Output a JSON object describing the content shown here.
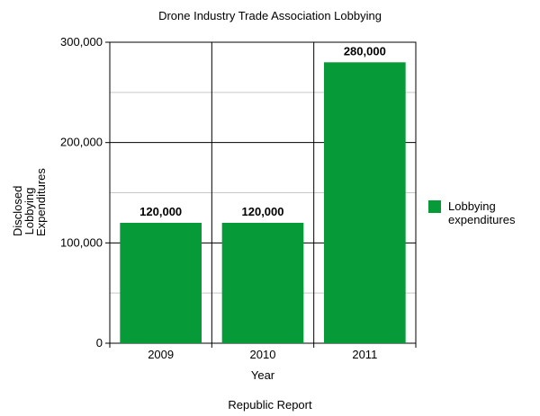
{
  "chart_data": {
    "type": "bar",
    "title": "Drone Industry Trade Association Lobbying",
    "xlabel": "Year",
    "ylabel_lines": [
      "Disclosed",
      "Lobbying",
      "Expenditures"
    ],
    "categories": [
      "2009",
      "2010",
      "2011"
    ],
    "series": [
      {
        "name": "Lobbying expenditures",
        "values": [
          120000,
          120000,
          280000
        ],
        "color": "#069a38"
      }
    ],
    "data_labels": [
      "120,000",
      "120,000",
      "280,000"
    ],
    "ylim": [
      0,
      300000
    ],
    "yticks": [
      0,
      100000,
      200000,
      300000
    ],
    "ytick_labels": [
      "0",
      "100,000",
      "200,000",
      "300,000"
    ],
    "minor_gridlines": [
      50000,
      150000,
      250000
    ],
    "grid": true,
    "legend_position": "right",
    "source": "Republic Report"
  }
}
